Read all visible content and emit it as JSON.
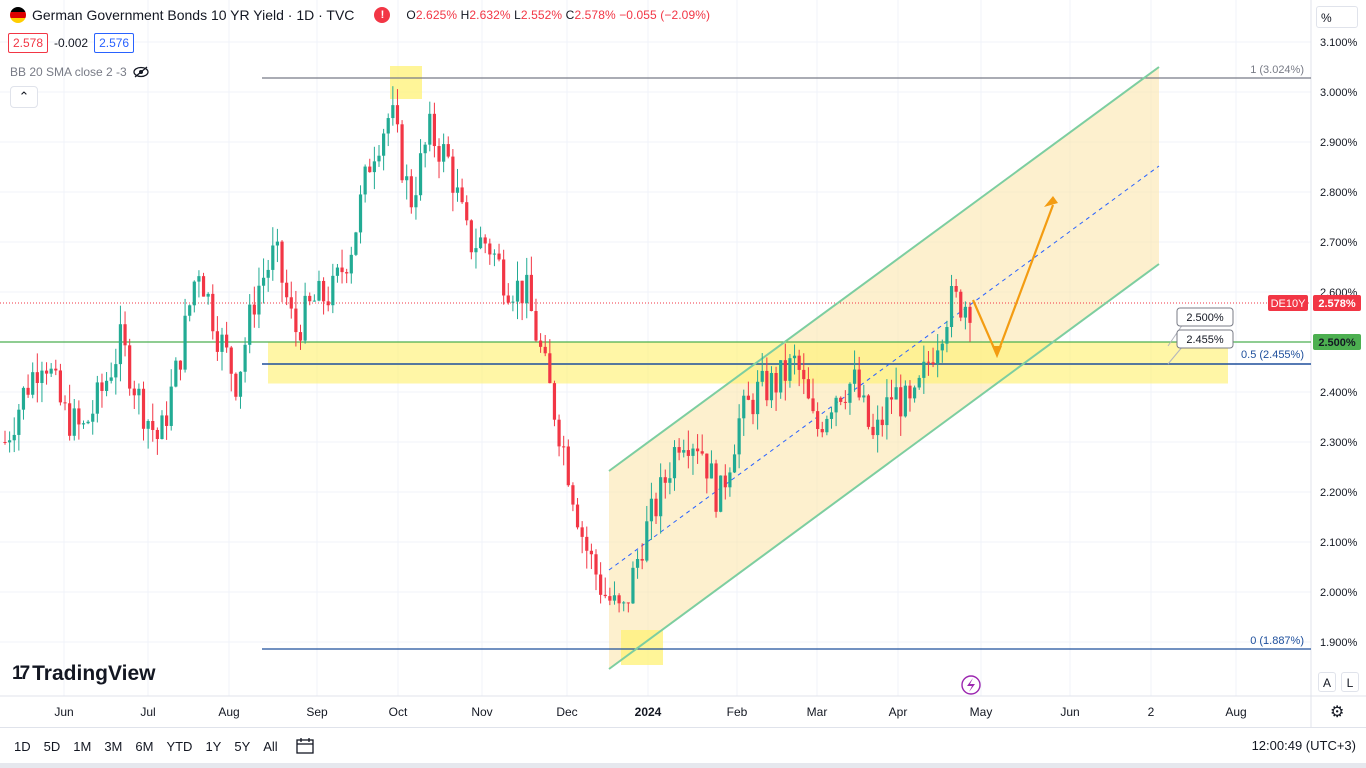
{
  "header": {
    "title": "German Government Bonds 10 YR Yield · 1D · TVC",
    "ohlc": [
      {
        "k": "O",
        "v": "2.625%"
      },
      {
        "k": "H",
        "v": "2.632%"
      },
      {
        "k": "L",
        "v": "2.552%"
      },
      {
        "k": "C",
        "v": "2.578%"
      }
    ],
    "change": "−0.055 (−2.09%)",
    "alert_icon": "exclamation-icon"
  },
  "prices": {
    "bid": "2.578",
    "spread": "-0.002",
    "ask": "2.576"
  },
  "indicator": {
    "label": "BB 20 SMA close 2 -3",
    "icon": "eye-hidden-icon"
  },
  "collapse_icon": "chevron-up-icon",
  "brand": {
    "mark": "17",
    "name": "TradingView"
  },
  "scale_unit": "%",
  "timeframes": [
    "1D",
    "5D",
    "1M",
    "3M",
    "6M",
    "YTD",
    "1Y",
    "5Y",
    "All"
  ],
  "clock": "12:00:49 (UTC+3)",
  "axis_buttons": {
    "auto": "A",
    "log": "L"
  },
  "colors": {
    "up": "#22ab94",
    "down": "#f23645",
    "channel": "#7dcea0",
    "zone": "#fff176",
    "fibo": "#1e4f9c",
    "arrow": "#f39c12",
    "accent": "#2962ff"
  },
  "chart_data": {
    "type": "candlestick",
    "symbol": "DE10Y",
    "ylim": [
      1.84,
      3.12
    ],
    "y_ticks": [
      "3.100%",
      "3.000%",
      "2.900%",
      "2.800%",
      "2.700%",
      "2.600%",
      "2.500%",
      "2.400%",
      "2.300%",
      "2.200%",
      "2.100%",
      "2.000%",
      "1.900%"
    ],
    "x_ticks": [
      "Jun",
      "Jul",
      "Aug",
      "Sep",
      "Oct",
      "Nov",
      "Dec",
      "2024",
      "Feb",
      "Mar",
      "Apr",
      "May",
      "Jun",
      "2",
      "Aug"
    ],
    "close_series": [
      {
        "date": "2023-05-15",
        "close": 2.3
      },
      {
        "date": "2023-05-22",
        "close": 2.4
      },
      {
        "date": "2023-05-29",
        "close": 2.48
      },
      {
        "date": "2023-06-05",
        "close": 2.36
      },
      {
        "date": "2023-06-12",
        "close": 2.32
      },
      {
        "date": "2023-06-19",
        "close": 2.4
      },
      {
        "date": "2023-06-26",
        "close": 2.5
      },
      {
        "date": "2023-07-03",
        "close": 2.38
      },
      {
        "date": "2023-07-10",
        "close": 2.3
      },
      {
        "date": "2023-07-17",
        "close": 2.46
      },
      {
        "date": "2023-07-24",
        "close": 2.66
      },
      {
        "date": "2023-07-31",
        "close": 2.52
      },
      {
        "date": "2023-08-07",
        "close": 2.42
      },
      {
        "date": "2023-08-14",
        "close": 2.6
      },
      {
        "date": "2023-08-21",
        "close": 2.68
      },
      {
        "date": "2023-08-28",
        "close": 2.52
      },
      {
        "date": "2023-09-04",
        "close": 2.58
      },
      {
        "date": "2023-09-11",
        "close": 2.6
      },
      {
        "date": "2023-09-18",
        "close": 2.7
      },
      {
        "date": "2023-09-25",
        "close": 2.88
      },
      {
        "date": "2023-10-02",
        "close": 2.96
      },
      {
        "date": "2023-10-09",
        "close": 2.78
      },
      {
        "date": "2023-10-16",
        "close": 2.92
      },
      {
        "date": "2023-10-23",
        "close": 2.86
      },
      {
        "date": "2023-10-30",
        "close": 2.7
      },
      {
        "date": "2023-11-06",
        "close": 2.7
      },
      {
        "date": "2023-11-13",
        "close": 2.62
      },
      {
        "date": "2023-11-20",
        "close": 2.6
      },
      {
        "date": "2023-11-27",
        "close": 2.44
      },
      {
        "date": "2023-12-04",
        "close": 2.28
      },
      {
        "date": "2023-12-11",
        "close": 2.1
      },
      {
        "date": "2023-12-18",
        "close": 2.0
      },
      {
        "date": "2023-12-25",
        "close": 1.95
      },
      {
        "date": "2024-01-01",
        "close": 2.1
      },
      {
        "date": "2024-01-08",
        "close": 2.2
      },
      {
        "date": "2024-01-15",
        "close": 2.32
      },
      {
        "date": "2024-01-22",
        "close": 2.3
      },
      {
        "date": "2024-01-29",
        "close": 2.18
      },
      {
        "date": "2024-02-05",
        "close": 2.34
      },
      {
        "date": "2024-02-12",
        "close": 2.4
      },
      {
        "date": "2024-02-19",
        "close": 2.42
      },
      {
        "date": "2024-02-26",
        "close": 2.46
      },
      {
        "date": "2024-03-04",
        "close": 2.32
      },
      {
        "date": "2024-03-11",
        "close": 2.4
      },
      {
        "date": "2024-03-18",
        "close": 2.42
      },
      {
        "date": "2024-03-25",
        "close": 2.3
      },
      {
        "date": "2024-04-01",
        "close": 2.4
      },
      {
        "date": "2024-04-08",
        "close": 2.36
      },
      {
        "date": "2024-04-15",
        "close": 2.48
      },
      {
        "date": "2024-04-22",
        "close": 2.58
      },
      {
        "date": "2024-04-24",
        "close": 2.578
      }
    ],
    "horizontal_levels": [
      {
        "price": 3.024,
        "label": "1 (3.024%)"
      },
      {
        "price": 1.887,
        "label": "0 (1.887%)"
      },
      {
        "price": 2.455,
        "label": "0.5 (2.455%)"
      },
      {
        "price": 2.5,
        "label": "2.500%"
      }
    ],
    "price_tags": [
      {
        "label": "DE10Y",
        "value": "2.578%"
      },
      {
        "label": "",
        "value": "2.500%"
      }
    ],
    "level_labels": [
      "2.500%",
      "2.455%"
    ],
    "drawings": [
      "ascending channel",
      "support zone 2.455%–2.500%",
      "projected path to ~2.78%"
    ]
  }
}
